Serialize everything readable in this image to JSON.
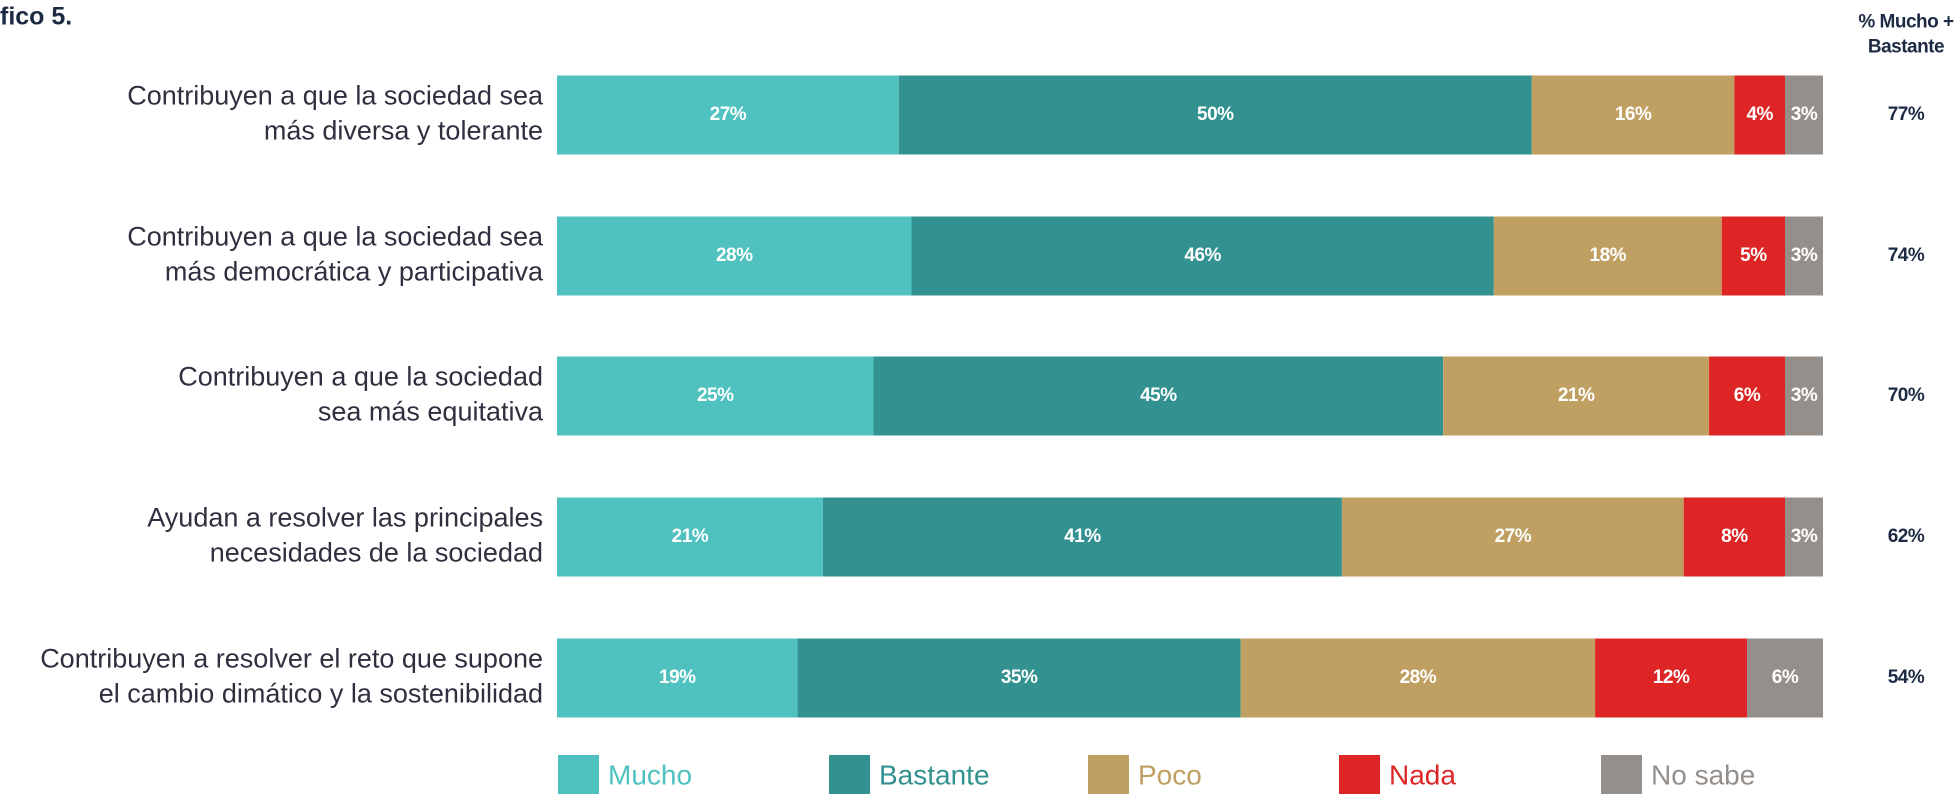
{
  "chart_data": {
    "type": "stacked_barh",
    "title": "fico 5.",
    "categories": [
      "Contribuyen a que la sociedad sea\nmás diversa y tolerante",
      "Contribuyen a que la sociedad sea\nmás democrática y participativa",
      "Contribuyen a que la sociedad\nsea más equitativa",
      "Ayudan a resolver las principales\nnecesidades de la sociedad",
      "Contribuyen a resolver el reto que supone\nel cambio dimático y la sostenibilidad"
    ],
    "xlim": [
      0,
      100
    ],
    "series": [
      {
        "name": "Mucho",
        "color": "#4fc1bf",
        "values": [
          27,
          28,
          25,
          21,
          19
        ],
        "value_labels": [
          "27%",
          "28%",
          "25%",
          "21%",
          "19%"
        ]
      },
      {
        "name": "Bastante",
        "color": "#33918f",
        "values": [
          50,
          46,
          45,
          41,
          35
        ],
        "value_labels": [
          "50%",
          "46%",
          "45%",
          "41%",
          "35%"
        ]
      },
      {
        "name": "Poco",
        "color": "#c0a062",
        "values": [
          16,
          18,
          21,
          27,
          28
        ],
        "value_labels": [
          "16%",
          "18%",
          "21%",
          "27%",
          "28%"
        ]
      },
      {
        "name": "Nada",
        "color": "#dc2524",
        "values": [
          4,
          5,
          6,
          8,
          12
        ],
        "value_labels": [
          "4%",
          "5%",
          "6%",
          "8%",
          "12%"
        ]
      },
      {
        "name": "No sabe",
        "color": "#958f8b",
        "values": [
          3,
          3,
          3,
          3,
          6
        ],
        "value_labels": [
          "3%",
          "3%",
          "3%",
          "3%",
          "6%"
        ]
      }
    ],
    "totals": {
      "label": "% Mucho +\nBastante",
      "values": [
        77,
        74,
        70,
        62,
        54
      ],
      "value_labels": [
        "77%",
        "74%",
        "70%",
        "62%",
        "54%"
      ]
    },
    "legend": "bottom"
  }
}
